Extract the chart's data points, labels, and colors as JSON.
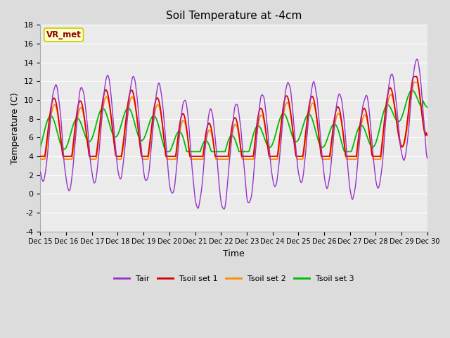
{
  "title": "Soil Temperature at -4cm",
  "xlabel": "Time",
  "ylabel": "Temperature (C)",
  "ylim": [
    -4,
    18
  ],
  "yticks": [
    -4,
    -2,
    0,
    2,
    4,
    6,
    8,
    10,
    12,
    14,
    16,
    18
  ],
  "xtick_labels": [
    "Dec 15",
    "Dec 16",
    "Dec 17",
    "Dec 18",
    "Dec 19",
    "Dec 20",
    "Dec 21",
    "Dec 22",
    "Dec 23",
    "Dec 24",
    "Dec 25",
    "Dec 26",
    "Dec 27",
    "Dec 28",
    "Dec 29",
    "Dec 30"
  ],
  "annotation_text": "VR_met",
  "annotation_color": "#8B0000",
  "annotation_bg": "#FFFFCC",
  "annotation_edge": "#CCCC00",
  "colors": {
    "Tair": "#9932CC",
    "Tsoil1": "#DD0000",
    "Tsoil2": "#FF8C00",
    "Tsoil3": "#00BB00"
  },
  "legend_labels": [
    "Tair",
    "Tsoil set 1",
    "Tsoil set 2",
    "Tsoil set 3"
  ],
  "bg_color": "#DCDCDC",
  "plot_bg_color": "#EBEBEB",
  "grid_color": "#FFFFFF",
  "n_points": 720,
  "days": 15
}
